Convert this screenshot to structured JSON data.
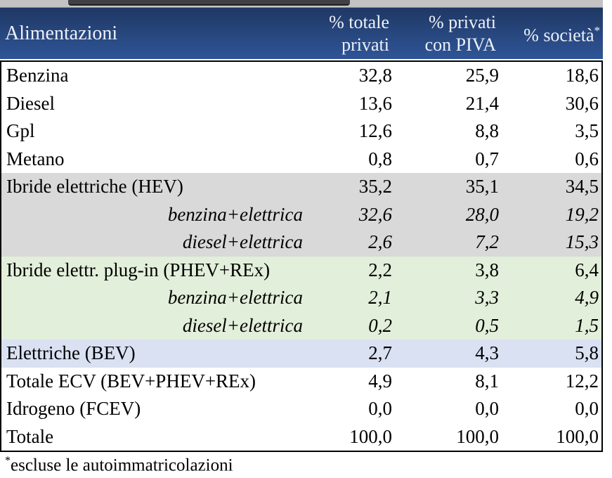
{
  "table": {
    "title": "Alimentazioni",
    "columns": [
      {
        "line1": "% totale",
        "line2": "privati"
      },
      {
        "line1": "% privati",
        "line2": "con PIVA"
      },
      {
        "line1": "% società",
        "sup": "*"
      }
    ],
    "rows": [
      {
        "label": "Benzina",
        "values": [
          "32,8",
          "25,9",
          "18,6"
        ],
        "section": "plain",
        "sub": false
      },
      {
        "label": "Diesel",
        "values": [
          "13,6",
          "21,4",
          "30,6"
        ],
        "section": "plain",
        "sub": false
      },
      {
        "label": "Gpl",
        "values": [
          "12,6",
          "8,8",
          "3,5"
        ],
        "section": "plain",
        "sub": false
      },
      {
        "label": "Metano",
        "values": [
          "0,8",
          "0,7",
          "0,6"
        ],
        "section": "plain",
        "sub": false
      },
      {
        "label": "Ibride elettriche (HEV)",
        "values": [
          "35,2",
          "35,1",
          "34,5"
        ],
        "section": "hev",
        "sub": false
      },
      {
        "label": "benzina+elettrica",
        "values": [
          "32,6",
          "28,0",
          "19,2"
        ],
        "section": "hev",
        "sub": true
      },
      {
        "label": "diesel+elettrica",
        "values": [
          "2,6",
          "7,2",
          "15,3"
        ],
        "section": "hev",
        "sub": true
      },
      {
        "label": "Ibride elettr. plug-in (PHEV+REx)",
        "values": [
          "2,2",
          "3,8",
          "6,4"
        ],
        "section": "phev",
        "sub": false
      },
      {
        "label": "benzina+elettrica",
        "values": [
          "2,1",
          "3,3",
          "4,9"
        ],
        "section": "phev",
        "sub": true
      },
      {
        "label": "diesel+elettrica",
        "values": [
          "0,2",
          "0,5",
          "1,5"
        ],
        "section": "phev",
        "sub": true
      },
      {
        "label": "Elettriche (BEV)",
        "values": [
          "2,7",
          "4,3",
          "5,8"
        ],
        "section": "bev",
        "sub": false
      },
      {
        "label": "Totale ECV (BEV+PHEV+REx)",
        "values": [
          "4,9",
          "8,1",
          "12,2"
        ],
        "section": "plain",
        "sub": false
      },
      {
        "label": "Idrogeno (FCEV)",
        "values": [
          "0,0",
          "0,0",
          "0,0"
        ],
        "section": "plain",
        "sub": false
      },
      {
        "label": "Totale",
        "values": [
          "100,0",
          "100,0",
          "100,0"
        ],
        "section": "plain",
        "sub": false
      }
    ],
    "footnote_marker": "*",
    "footnote_text": "escluse le autoimmatricolazioni"
  },
  "colors": {
    "header_gradient_top": "#1f3864",
    "header_gradient_bottom": "#2f5597",
    "header_text": "#edf1f8",
    "section_plain": "#ffffff",
    "section_hev": "#d9d9d9",
    "section_phev": "#e2efda",
    "section_bev": "#d9e1f2",
    "table_border": "#000000",
    "top_strip": "#c3c3c3",
    "dark_tab": "#414145"
  }
}
